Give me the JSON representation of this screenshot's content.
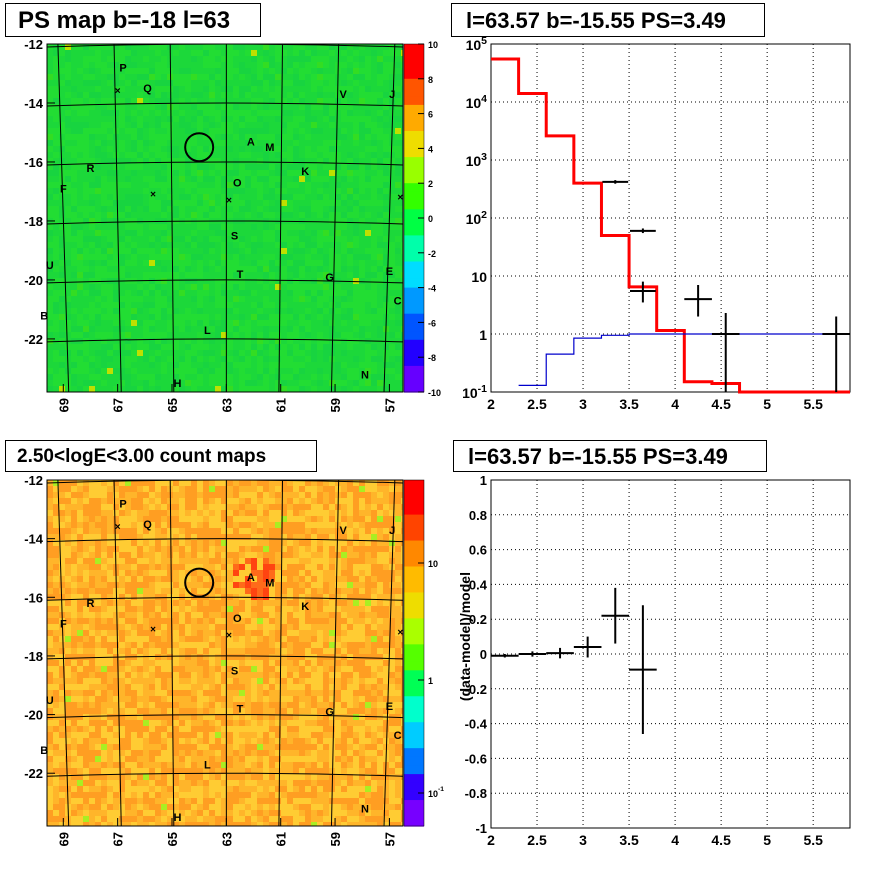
{
  "titles": {
    "top_left": "PS map b=-18 l=63",
    "top_right": "l=63.57 b=-15.55 PS=3.49",
    "bottom_left": "2.50<logE<3.00 count maps",
    "bottom_right": "l=63.57 b=-15.55 PS=3.49"
  },
  "colors": {
    "red_hist": "#ff0000",
    "blue_hist": "#0000cc",
    "points": "#000000"
  },
  "chart_data": [
    {
      "type": "heatmap",
      "title": "PS map b=-18 l=63",
      "xlabel": "",
      "ylabel": "",
      "x_ticks": [
        "69",
        "67",
        "65",
        "63",
        "61",
        "59",
        "57"
      ],
      "y_ticks": [
        "-12",
        "-14",
        "-16",
        "-18",
        "-20",
        "-22"
      ],
      "xlim": [
        69.6,
        56.5
      ],
      "ylim": [
        -23.8,
        -12.0
      ],
      "colorbar": {
        "ticks": [
          "10",
          "8",
          "6",
          "4",
          "2",
          "0",
          "-2",
          "-4",
          "-6",
          "-8",
          "-10"
        ],
        "range": [
          -10,
          10
        ]
      },
      "source_labels": [
        {
          "t": "P",
          "l": 66.8,
          "b": -12.8
        },
        {
          "t": "Q",
          "l": 65.9,
          "b": -13.5
        },
        {
          "t": "V",
          "l": 58.7,
          "b": -13.7
        },
        {
          "t": "J",
          "l": 56.9,
          "b": -13.7
        },
        {
          "t": "A",
          "l": 62.1,
          "b": -15.3
        },
        {
          "t": "M",
          "l": 61.4,
          "b": -15.5
        },
        {
          "t": "R",
          "l": 68.0,
          "b": -16.2
        },
        {
          "t": "K",
          "l": 60.1,
          "b": -16.3
        },
        {
          "t": "F",
          "l": 69.0,
          "b": -16.9
        },
        {
          "t": "O",
          "l": 62.6,
          "b": -16.7
        },
        {
          "t": "S",
          "l": 62.7,
          "b": -18.5
        },
        {
          "t": "U",
          "l": 69.5,
          "b": -19.5
        },
        {
          "t": "T",
          "l": 62.5,
          "b": -19.8
        },
        {
          "t": "G",
          "l": 59.2,
          "b": -19.9
        },
        {
          "t": "E",
          "l": 57.0,
          "b": -19.7
        },
        {
          "t": "C",
          "l": 56.7,
          "b": -20.7
        },
        {
          "t": "B",
          "l": 69.7,
          "b": -21.2
        },
        {
          "t": "L",
          "l": 63.7,
          "b": -21.7
        },
        {
          "t": "H",
          "l": 64.8,
          "b": -23.5
        },
        {
          "t": "N",
          "l": 57.9,
          "b": -23.2
        }
      ],
      "crosses": [
        {
          "l": 67.0,
          "b": -13.6
        },
        {
          "l": 65.7,
          "b": -17.1
        },
        {
          "l": 62.9,
          "b": -17.3
        },
        {
          "l": 56.6,
          "b": -17.2
        }
      ],
      "circle": {
        "l": 64.0,
        "b": -15.5
      }
    },
    {
      "type": "line",
      "title": "l=63.57 b=-15.55 PS=3.49",
      "xlabel": "",
      "ylabel": "",
      "x_ticks": [
        "2",
        "2.5",
        "3",
        "3.5",
        "4",
        "4.5",
        "5",
        "5.5"
      ],
      "y_ticks": [
        "10^-1",
        "1",
        "10",
        "10^2",
        "10^3",
        "10^4",
        "10^5"
      ],
      "xlim": [
        2.0,
        5.9
      ],
      "ylim": [
        0.1,
        100000
      ],
      "yscale": "log",
      "grid": true,
      "series": [
        {
          "style": "red-histogram",
          "edges": [
            2.0,
            2.3,
            2.6,
            2.9,
            3.2,
            3.5,
            3.8,
            4.1,
            4.4,
            4.7,
            5.9
          ],
          "values": [
            55000,
            14000,
            2600,
            400,
            50,
            6.5,
            1.15,
            0.15,
            0.14,
            0.1
          ]
        },
        {
          "style": "blue-histogram",
          "edges": [
            2.3,
            2.6,
            2.9,
            3.2,
            3.5,
            5.9
          ],
          "values": [
            0.13,
            0.45,
            0.85,
            0.95,
            1.0
          ]
        },
        {
          "style": "data-points",
          "points": [
            {
              "x": 3.35,
              "y": 420,
              "ylo": 390,
              "yhi": 450,
              "xe": 0.14
            },
            {
              "x": 3.65,
              "y": 60,
              "ylo": 55,
              "yhi": 66,
              "xe": 0.14
            },
            {
              "x": 3.65,
              "y": 5.5,
              "ylo": 3.5,
              "yhi": 8.0,
              "xe": 0.14
            },
            {
              "x": 4.25,
              "y": 4.0,
              "ylo": 2.0,
              "yhi": 7.0,
              "xe": 0.15
            },
            {
              "x": 4.55,
              "y": 1.0,
              "ylo": 0.1,
              "yhi": 2.3,
              "xe": 0.15
            },
            {
              "x": 5.75,
              "y": 1.0,
              "ylo": 0.1,
              "yhi": 2.0,
              "xe": 0.15
            }
          ]
        }
      ]
    },
    {
      "type": "heatmap",
      "title": "2.50<logE<3.00 count maps",
      "xlabel": "",
      "ylabel": "",
      "x_ticks": [
        "69",
        "67",
        "65",
        "63",
        "61",
        "59",
        "57"
      ],
      "y_ticks": [
        "-12",
        "-14",
        "-16",
        "-18",
        "-20",
        "-22"
      ],
      "xlim": [
        69.6,
        56.5
      ],
      "ylim": [
        -23.8,
        -12.0
      ],
      "colorbar": {
        "ticks": [
          "10",
          "1",
          "10^-1"
        ],
        "scale": "log"
      },
      "bright_spot": {
        "l": 62.2,
        "b": -15.4
      }
    },
    {
      "type": "scatter",
      "title": "l=63.57 b=-15.55 PS=3.49",
      "xlabel": "",
      "ylabel": "(data-model)/model",
      "x_ticks": [
        "2",
        "2.5",
        "3",
        "3.5",
        "4",
        "4.5",
        "5",
        "5.5"
      ],
      "y_ticks": [
        "1",
        "0.8",
        "0.6",
        "0.4",
        "0.2",
        "0",
        "-0.2",
        "-0.4",
        "-0.6",
        "-0.8",
        "-1"
      ],
      "xlim": [
        2.0,
        5.9
      ],
      "ylim": [
        -1,
        1
      ],
      "grid": true,
      "points": [
        {
          "x": 2.15,
          "y": -0.01,
          "ye": 0.01,
          "xe": 0.15
        },
        {
          "x": 2.45,
          "y": 0.0,
          "ye": 0.015,
          "xe": 0.15
        },
        {
          "x": 2.75,
          "y": 0.005,
          "ye": 0.03,
          "xe": 0.15
        },
        {
          "x": 3.05,
          "y": 0.04,
          "ye": 0.06,
          "xe": 0.15
        },
        {
          "x": 3.35,
          "y": 0.22,
          "ye": 0.16,
          "xe": 0.15
        },
        {
          "x": 3.65,
          "y": -0.09,
          "ye": 0.37,
          "xe": 0.15
        }
      ]
    }
  ]
}
